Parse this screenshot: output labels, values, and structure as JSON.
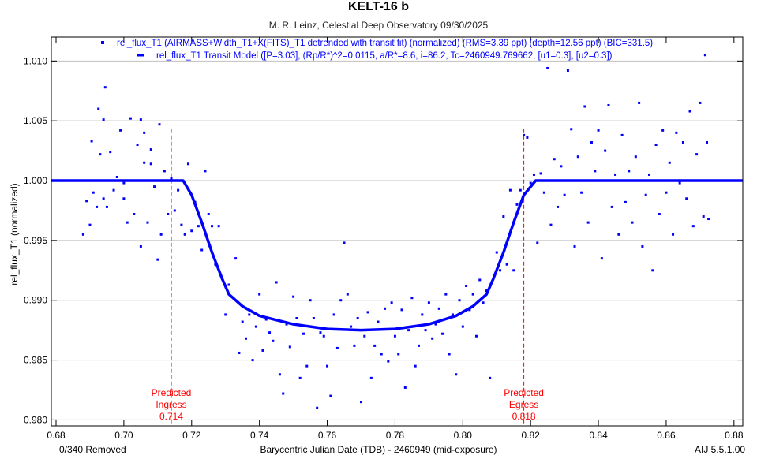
{
  "chart_data": {
    "type": "scatter",
    "title": "KELT-16 b",
    "subtitle": "M. R. Leinz, Celestial Deep Observatory 09/30/2025",
    "xlabel": "Barycentric Julian Date (TDB) - 2460949 (mid-exposure)",
    "ylabel": "rel_flux_T1 (normalized)",
    "xlim": [
      0.6786,
      0.8826
    ],
    "ylim": [
      0.9795,
      1.012
    ],
    "xticks": [
      "0.68",
      "0.70",
      "0.72",
      "0.74",
      "0.76",
      "0.78",
      "0.80",
      "0.82",
      "0.84",
      "0.86",
      "0.88"
    ],
    "yticks": [
      "0.980",
      "0.985",
      "0.990",
      "0.995",
      "1.000",
      "1.005",
      "1.010"
    ],
    "grid": "horizontal",
    "legend_position": "top-center",
    "legend": [
      "rel_flux_T1 (AIRMASS+Width_T1+X(FITS)_T1 detrended with transit fit) (normalized) (RMS=3.39 ppt) (depth=12.56 ppt) (BIC=331.5)",
      "rel_flux_T1 Transit Model ([P=3.03], (Rp/R*)^2=0.0115, a/R*=8.6, i=86.2, Tc=2460949.769662, [u1=0.3], [u2=0.3])"
    ],
    "predicted": [
      {
        "label1": "Predicted",
        "label2": "Ingress",
        "x": 0.714,
        "value_label": "0.714"
      },
      {
        "label1": "Predicted",
        "label2": "Egress",
        "x": 0.818,
        "value_label": "0.818"
      }
    ],
    "colors": {
      "data": "#0000ff",
      "model": "#0000ff",
      "predicted": "#ff0000",
      "grid": "#c0c0c0"
    },
    "model": [
      [
        0.6786,
        1.0
      ],
      [
        0.7175,
        1.0
      ],
      [
        0.72,
        0.9988
      ],
      [
        0.723,
        0.9965
      ],
      [
        0.726,
        0.994
      ],
      [
        0.729,
        0.9918
      ],
      [
        0.731,
        0.9905
      ],
      [
        0.735,
        0.9895
      ],
      [
        0.74,
        0.9887
      ],
      [
        0.75,
        0.988
      ],
      [
        0.76,
        0.9876
      ],
      [
        0.77,
        0.9875
      ],
      [
        0.78,
        0.9876
      ],
      [
        0.79,
        0.988
      ],
      [
        0.798,
        0.9887
      ],
      [
        0.803,
        0.9895
      ],
      [
        0.807,
        0.9905
      ],
      [
        0.809,
        0.9918
      ],
      [
        0.812,
        0.994
      ],
      [
        0.815,
        0.9965
      ],
      [
        0.818,
        0.9988
      ],
      [
        0.8215,
        1.0
      ],
      [
        0.8826,
        1.0
      ]
    ],
    "points": [
      [
        0.688,
        0.9955
      ],
      [
        0.689,
        0.9983
      ],
      [
        0.69,
        0.9963
      ],
      [
        0.6905,
        1.0033
      ],
      [
        0.691,
        0.999
      ],
      [
        0.692,
        0.9978
      ],
      [
        0.6925,
        1.006
      ],
      [
        0.693,
        1.0022
      ],
      [
        0.694,
        0.9985
      ],
      [
        0.694,
        1.0051
      ],
      [
        0.6945,
        1.0078
      ],
      [
        0.695,
        0.9978
      ],
      [
        0.696,
        1.0024
      ],
      [
        0.697,
        0.9992
      ],
      [
        0.698,
        1.0003
      ],
      [
        0.699,
        1.0042
      ],
      [
        0.7,
        0.9998
      ],
      [
        0.7,
        0.9985
      ],
      [
        0.701,
        0.9965
      ],
      [
        0.702,
        1.0052
      ],
      [
        0.703,
        0.9972
      ],
      [
        0.704,
        1.003
      ],
      [
        0.705,
        1.0051
      ],
      [
        0.705,
        0.9945
      ],
      [
        0.706,
        1.0015
      ],
      [
        0.706,
        1.004
      ],
      [
        0.707,
        0.9965
      ],
      [
        0.708,
        1.0026
      ],
      [
        0.708,
        1.0014
      ],
      [
        0.709,
        0.9995
      ],
      [
        0.71,
        0.9934
      ],
      [
        0.7105,
        1.0047
      ],
      [
        0.711,
        0.9955
      ],
      [
        0.712,
        1.0008
      ],
      [
        0.713,
        0.9972
      ],
      [
        0.714,
        1.0002
      ],
      [
        0.715,
        0.9975
      ],
      [
        0.716,
        0.9992
      ],
      [
        0.717,
        0.9963
      ],
      [
        0.718,
        0.9955
      ],
      [
        0.719,
        1.0014
      ],
      [
        0.72,
        0.9958
      ],
      [
        0.721,
        0.9982
      ],
      [
        0.722,
        0.9962
      ],
      [
        0.723,
        0.9942
      ],
      [
        0.724,
        1.0008
      ],
      [
        0.725,
        0.9972
      ],
      [
        0.726,
        0.9962
      ],
      [
        0.727,
        0.993
      ],
      [
        0.728,
        0.9962
      ],
      [
        0.729,
        0.9918
      ],
      [
        0.73,
        0.9888
      ],
      [
        0.731,
        0.9913
      ],
      [
        0.733,
        0.9935
      ],
      [
        0.734,
        0.9856
      ],
      [
        0.735,
        0.9882
      ],
      [
        0.736,
        0.9868
      ],
      [
        0.737,
        0.9888
      ],
      [
        0.738,
        0.985
      ],
      [
        0.739,
        0.9878
      ],
      [
        0.74,
        0.9905
      ],
      [
        0.741,
        0.9858
      ],
      [
        0.742,
        0.9884
      ],
      [
        0.743,
        0.9873
      ],
      [
        0.744,
        0.9866
      ],
      [
        0.745,
        0.9915
      ],
      [
        0.746,
        0.9838
      ],
      [
        0.747,
        0.9822
      ],
      [
        0.748,
        0.988
      ],
      [
        0.749,
        0.9861
      ],
      [
        0.75,
        0.9903
      ],
      [
        0.751,
        0.9885
      ],
      [
        0.752,
        0.9835
      ],
      [
        0.753,
        0.9872
      ],
      [
        0.754,
        0.9845
      ],
      [
        0.755,
        0.99
      ],
      [
        0.756,
        0.9885
      ],
      [
        0.757,
        0.981
      ],
      [
        0.758,
        0.9873
      ],
      [
        0.759,
        0.987
      ],
      [
        0.76,
        0.9845
      ],
      [
        0.761,
        0.982
      ],
      [
        0.762,
        0.9888
      ],
      [
        0.763,
        0.986
      ],
      [
        0.764,
        0.99
      ],
      [
        0.765,
        0.9948
      ],
      [
        0.766,
        0.9905
      ],
      [
        0.767,
        0.9878
      ],
      [
        0.768,
        0.9862
      ],
      [
        0.769,
        0.9885
      ],
      [
        0.77,
        0.9815
      ],
      [
        0.771,
        0.987
      ],
      [
        0.772,
        0.989
      ],
      [
        0.773,
        0.9835
      ],
      [
        0.774,
        0.9862
      ],
      [
        0.775,
        0.9882
      ],
      [
        0.776,
        0.9855
      ],
      [
        0.777,
        0.9893
      ],
      [
        0.778,
        0.9849
      ],
      [
        0.779,
        0.9898
      ],
      [
        0.78,
        0.987
      ],
      [
        0.781,
        0.9855
      ],
      [
        0.782,
        0.9892
      ],
      [
        0.783,
        0.9827
      ],
      [
        0.784,
        0.9875
      ],
      [
        0.785,
        0.9902
      ],
      [
        0.786,
        0.9845
      ],
      [
        0.787,
        0.9862
      ],
      [
        0.788,
        0.9888
      ],
      [
        0.789,
        0.9875
      ],
      [
        0.79,
        0.9898
      ],
      [
        0.791,
        0.9868
      ],
      [
        0.792,
        0.988
      ],
      [
        0.793,
        0.9893
      ],
      [
        0.794,
        0.9872
      ],
      [
        0.795,
        0.9905
      ],
      [
        0.796,
        0.9855
      ],
      [
        0.797,
        0.9888
      ],
      [
        0.798,
        0.9838
      ],
      [
        0.799,
        0.99
      ],
      [
        0.8,
        0.9878
      ],
      [
        0.801,
        0.9912
      ],
      [
        0.802,
        0.9892
      ],
      [
        0.803,
        0.9905
      ],
      [
        0.804,
        0.987
      ],
      [
        0.805,
        0.9917
      ],
      [
        0.806,
        0.9898
      ],
      [
        0.807,
        0.9908
      ],
      [
        0.808,
        0.9835
      ],
      [
        0.809,
        0.9918
      ],
      [
        0.81,
        0.994
      ],
      [
        0.811,
        0.9925
      ],
      [
        0.812,
        0.997
      ],
      [
        0.813,
        0.993
      ],
      [
        0.814,
        0.9992
      ],
      [
        0.815,
        0.9925
      ],
      [
        0.816,
        0.998
      ],
      [
        0.817,
        0.9992
      ],
      [
        0.818,
        1.0038
      ],
      [
        0.819,
        1.0036
      ],
      [
        0.82,
        0.9998
      ],
      [
        0.821,
        1.0005
      ],
      [
        0.822,
        0.9948
      ],
      [
        0.823,
        1.0006
      ],
      [
        0.824,
        0.999
      ],
      [
        0.825,
        1.0094
      ],
      [
        0.826,
        0.9963
      ],
      [
        0.827,
        1.0018
      ],
      [
        0.828,
        0.9978
      ],
      [
        0.829,
        1.0012
      ],
      [
        0.83,
        0.9988
      ],
      [
        0.831,
        1.0092
      ],
      [
        0.832,
        1.0043
      ],
      [
        0.833,
        0.9945
      ],
      [
        0.834,
        1.002
      ],
      [
        0.835,
        0.999
      ],
      [
        0.836,
        1.0062
      ],
      [
        0.837,
        0.9965
      ],
      [
        0.838,
        1.0032
      ],
      [
        0.839,
        1.0008
      ],
      [
        0.84,
        1.0042
      ],
      [
        0.841,
        0.9935
      ],
      [
        0.842,
        1.0025
      ],
      [
        0.843,
        1.0063
      ],
      [
        0.844,
        0.9978
      ],
      [
        0.845,
        1.0005
      ],
      [
        0.846,
        0.9955
      ],
      [
        0.847,
        1.0038
      ],
      [
        0.848,
        0.9982
      ],
      [
        0.849,
        1.0008
      ],
      [
        0.85,
        0.9965
      ],
      [
        0.851,
        1.002
      ],
      [
        0.852,
        1.0065
      ],
      [
        0.853,
        0.9945
      ],
      [
        0.854,
        0.9988
      ],
      [
        0.855,
        1.0005
      ],
      [
        0.856,
        0.9925
      ],
      [
        0.857,
        1.003
      ],
      [
        0.858,
        0.9972
      ],
      [
        0.859,
        1.0042
      ],
      [
        0.86,
        0.999
      ],
      [
        0.861,
        1.0015
      ],
      [
        0.862,
        0.9955
      ],
      [
        0.863,
        1.004
      ],
      [
        0.864,
        0.9998
      ],
      [
        0.865,
        1.0032
      ],
      [
        0.866,
        0.9985
      ],
      [
        0.867,
        1.0058
      ],
      [
        0.868,
        0.9962
      ],
      [
        0.869,
        1.0022
      ],
      [
        0.87,
        1.0065
      ],
      [
        0.871,
        0.997
      ],
      [
        0.8715,
        1.0105
      ],
      [
        0.872,
        1.0032
      ],
      [
        0.8725,
        0.9968
      ]
    ]
  },
  "footer": {
    "removed": "0/340 Removed",
    "version": "AIJ 5.5.1.00"
  }
}
